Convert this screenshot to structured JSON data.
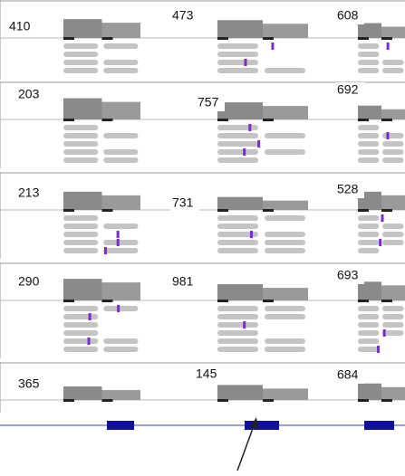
{
  "panels": [
    {
      "counts": [
        410,
        473,
        608
      ]
    },
    {
      "counts": [
        203,
        757,
        692
      ]
    },
    {
      "counts": [
        213,
        731,
        528
      ]
    },
    {
      "counts": [
        290,
        981,
        693
      ]
    },
    {
      "counts": [
        365,
        145,
        684
      ]
    }
  ]
}
